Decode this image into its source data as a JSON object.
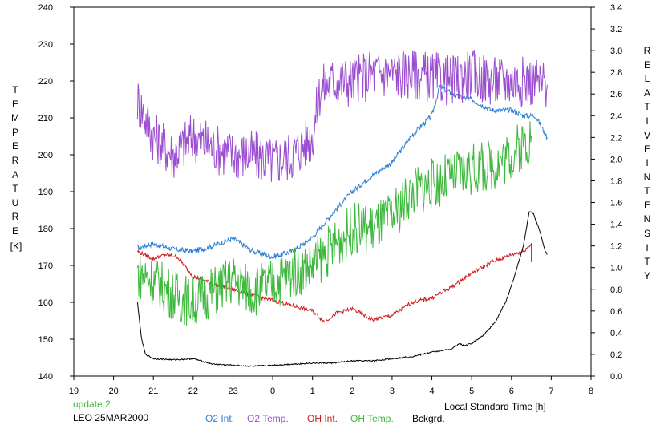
{
  "chart_data": {
    "type": "line",
    "x_axis": {
      "label": "Local Standard Time [h]",
      "ticks": [
        "19",
        "20",
        "21",
        "22",
        "23",
        "0",
        "1",
        "2",
        "3",
        "4",
        "5",
        "6",
        "7",
        "8"
      ],
      "range_hours_after_19": [
        0,
        13
      ]
    },
    "y_left": {
      "label_letters": [
        "T",
        "E",
        "M",
        "P",
        "E",
        "R",
        "A",
        "T",
        "U",
        "R",
        "E"
      ],
      "unit": "[K]",
      "ticks": [
        "240",
        "230",
        "220",
        "210",
        "200",
        "190",
        "180",
        "170",
        "160",
        "150",
        "140"
      ],
      "range": [
        140,
        240
      ]
    },
    "y_right": {
      "label_letters_1": [
        "R",
        "E",
        "L",
        "A",
        "T",
        "I",
        "V",
        "E"
      ],
      "label_letters_2": [
        "I",
        "N",
        "T",
        "E",
        "N",
        "S",
        "I",
        "T",
        "Y"
      ],
      "ticks": [
        "3.4",
        "3.2",
        "3.0",
        "2.8",
        "2.6",
        "2.4",
        "2.2",
        "2.0",
        "1.8",
        "1.6",
        "1.4",
        "1.2",
        "1.0",
        "0.8",
        "0.6",
        "0.4",
        "0.2",
        "0.0"
      ],
      "range": [
        0.0,
        3.4
      ]
    },
    "grid": false,
    "annotations": {
      "update": "update 2",
      "site_date": "LEO 25MAR2000"
    },
    "series": [
      {
        "name": "O2 Int.",
        "axis": "right",
        "color": "#2a7fd4",
        "noise": 0.025,
        "points": [
          [
            20.6,
            1.18
          ],
          [
            21.0,
            1.22
          ],
          [
            21.5,
            1.17
          ],
          [
            22.0,
            1.15
          ],
          [
            22.5,
            1.2
          ],
          [
            23.0,
            1.27
          ],
          [
            23.5,
            1.15
          ],
          [
            24.0,
            1.1
          ],
          [
            24.5,
            1.15
          ],
          [
            25.0,
            1.28
          ],
          [
            25.5,
            1.5
          ],
          [
            26.0,
            1.7
          ],
          [
            26.5,
            1.85
          ],
          [
            27.0,
            1.97
          ],
          [
            27.5,
            2.22
          ],
          [
            28.0,
            2.4
          ],
          [
            28.2,
            2.67
          ],
          [
            28.6,
            2.58
          ],
          [
            29.0,
            2.55
          ],
          [
            29.5,
            2.45
          ],
          [
            30.0,
            2.45
          ],
          [
            30.3,
            2.4
          ],
          [
            30.6,
            2.4
          ],
          [
            30.9,
            2.2
          ]
        ]
      },
      {
        "name": "O2 Temp.",
        "axis": "left",
        "color": "#9b4dd0",
        "noise": 7,
        "points": [
          [
            20.6,
            215
          ],
          [
            21.0,
            205
          ],
          [
            21.5,
            200
          ],
          [
            22.0,
            205
          ],
          [
            22.5,
            202
          ],
          [
            23.0,
            200
          ],
          [
            23.5,
            200
          ],
          [
            24.0,
            198
          ],
          [
            24.5,
            200
          ],
          [
            25.0,
            205
          ],
          [
            25.2,
            218
          ],
          [
            25.5,
            220
          ],
          [
            26.0,
            220
          ],
          [
            26.5,
            222
          ],
          [
            27.0,
            222
          ],
          [
            27.5,
            222
          ],
          [
            28.0,
            221
          ],
          [
            28.5,
            220
          ],
          [
            29.0,
            222
          ],
          [
            29.5,
            220
          ],
          [
            30.0,
            220
          ],
          [
            30.5,
            220
          ],
          [
            30.9,
            219
          ]
        ]
      },
      {
        "name": "OH Int.",
        "axis": "right",
        "color": "#d01a1a",
        "noise": 0.018,
        "points": [
          [
            20.6,
            1.15
          ],
          [
            21.0,
            1.08
          ],
          [
            21.3,
            1.12
          ],
          [
            21.6,
            1.1
          ],
          [
            22.0,
            0.92
          ],
          [
            22.5,
            0.85
          ],
          [
            23.0,
            0.8
          ],
          [
            23.5,
            0.74
          ],
          [
            24.0,
            0.7
          ],
          [
            24.5,
            0.65
          ],
          [
            25.0,
            0.6
          ],
          [
            25.3,
            0.5
          ],
          [
            25.6,
            0.58
          ],
          [
            26.0,
            0.62
          ],
          [
            26.5,
            0.52
          ],
          [
            27.0,
            0.56
          ],
          [
            27.5,
            0.68
          ],
          [
            28.0,
            0.72
          ],
          [
            28.5,
            0.82
          ],
          [
            29.0,
            0.95
          ],
          [
            29.5,
            1.05
          ],
          [
            30.0,
            1.12
          ],
          [
            30.3,
            1.15
          ],
          [
            30.5,
            1.22
          ],
          [
            30.5,
            1.05
          ]
        ]
      },
      {
        "name": "OH Temp.",
        "axis": "left",
        "color": "#3cb83c",
        "noise": 7,
        "points": [
          [
            20.6,
            168
          ],
          [
            21.0,
            166
          ],
          [
            21.5,
            162
          ],
          [
            22.0,
            160
          ],
          [
            22.5,
            163
          ],
          [
            23.0,
            166
          ],
          [
            23.5,
            163
          ],
          [
            24.0,
            165
          ],
          [
            24.5,
            168
          ],
          [
            25.0,
            170
          ],
          [
            25.5,
            175
          ],
          [
            26.0,
            180
          ],
          [
            26.5,
            180
          ],
          [
            27.0,
            183
          ],
          [
            27.5,
            190
          ],
          [
            28.0,
            192
          ],
          [
            28.5,
            194
          ],
          [
            29.0,
            196
          ],
          [
            29.5,
            197
          ],
          [
            30.0,
            200
          ],
          [
            30.5,
            205
          ]
        ]
      },
      {
        "name": "Bckgrd.",
        "axis": "right",
        "color": "#000000",
        "noise": 0.006,
        "points": [
          [
            20.6,
            0.68
          ],
          [
            20.7,
            0.35
          ],
          [
            20.8,
            0.2
          ],
          [
            21.0,
            0.16
          ],
          [
            21.5,
            0.15
          ],
          [
            22.0,
            0.16
          ],
          [
            22.5,
            0.11
          ],
          [
            23.0,
            0.1
          ],
          [
            23.5,
            0.09
          ],
          [
            24.0,
            0.1
          ],
          [
            24.5,
            0.11
          ],
          [
            25.0,
            0.12
          ],
          [
            25.5,
            0.12
          ],
          [
            26.0,
            0.14
          ],
          [
            26.5,
            0.14
          ],
          [
            27.0,
            0.16
          ],
          [
            27.5,
            0.18
          ],
          [
            28.0,
            0.22
          ],
          [
            28.5,
            0.25
          ],
          [
            28.7,
            0.3
          ],
          [
            28.8,
            0.28
          ],
          [
            29.0,
            0.3
          ],
          [
            29.3,
            0.38
          ],
          [
            29.6,
            0.5
          ],
          [
            29.9,
            0.72
          ],
          [
            30.1,
            0.95
          ],
          [
            30.3,
            1.2
          ],
          [
            30.45,
            1.52
          ],
          [
            30.55,
            1.5
          ],
          [
            30.7,
            1.35
          ],
          [
            30.85,
            1.15
          ],
          [
            30.9,
            1.12
          ]
        ]
      }
    ]
  }
}
